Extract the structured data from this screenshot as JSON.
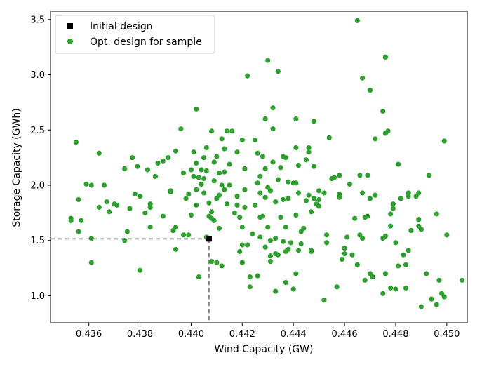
{
  "chart_data": {
    "type": "scatter",
    "xlabel": "Wind Capacity (GW)",
    "ylabel": "Storage Capacity (GWh)",
    "xlim": [
      0.4345,
      0.4508
    ],
    "ylim": [
      0.755,
      3.575
    ],
    "x_ticks": [
      "0.436",
      "0.438",
      "0.440",
      "0.442",
      "0.444",
      "0.446",
      "0.448",
      "0.450"
    ],
    "x_tick_values": [
      0.436,
      0.438,
      0.44,
      0.442,
      0.444,
      0.446,
      0.448,
      0.45
    ],
    "y_ticks": [
      "1.0",
      "1.5",
      "2.0",
      "2.5",
      "3.0",
      "3.5"
    ],
    "y_tick_values": [
      1.0,
      1.5,
      2.0,
      2.5,
      3.0,
      3.5
    ],
    "grid": false,
    "legend_position": "top-left",
    "colors": {
      "initial": "#000000",
      "samples": "#2ca02c",
      "guide": "#808080"
    },
    "series": [
      {
        "name": "Initial design",
        "marker": "square",
        "points": [
          [
            0.4407,
            1.515
          ]
        ]
      },
      {
        "name": "Opt. design for sample",
        "marker": "circle",
        "points": [
          [
            0.4353,
            1.7
          ],
          [
            0.4353,
            1.68
          ],
          [
            0.4355,
            2.39
          ],
          [
            0.4356,
            1.87
          ],
          [
            0.4356,
            1.58
          ],
          [
            0.4357,
            1.68
          ],
          [
            0.4359,
            2.01
          ],
          [
            0.4361,
            2.0
          ],
          [
            0.4361,
            1.52
          ],
          [
            0.4361,
            1.3
          ],
          [
            0.4364,
            2.29
          ],
          [
            0.4364,
            1.8
          ],
          [
            0.4366,
            2.0
          ],
          [
            0.4367,
            1.85
          ],
          [
            0.4368,
            1.76
          ],
          [
            0.437,
            1.83
          ],
          [
            0.4371,
            1.82
          ],
          [
            0.4374,
            2.15
          ],
          [
            0.4374,
            1.5
          ],
          [
            0.4375,
            1.58
          ],
          [
            0.4376,
            1.79
          ],
          [
            0.4377,
            2.25
          ],
          [
            0.4378,
            1.92
          ],
          [
            0.4379,
            2.17
          ],
          [
            0.438,
            1.9
          ],
          [
            0.438,
            1.23
          ],
          [
            0.4382,
            1.75
          ],
          [
            0.4383,
            2.14
          ],
          [
            0.4384,
            1.83
          ],
          [
            0.4384,
            1.8
          ],
          [
            0.4384,
            1.62
          ],
          [
            0.4386,
            2.08
          ],
          [
            0.4387,
            2.2
          ],
          [
            0.4389,
            1.72
          ],
          [
            0.4389,
            2.22
          ],
          [
            0.4391,
            2.25
          ],
          [
            0.4392,
            1.95
          ],
          [
            0.4392,
            1.94
          ],
          [
            0.4393,
            1.59
          ],
          [
            0.4394,
            2.31
          ],
          [
            0.4394,
            1.62
          ],
          [
            0.4394,
            1.42
          ],
          [
            0.4396,
            2.51
          ],
          [
            0.4397,
            2.11
          ],
          [
            0.4397,
            1.55
          ],
          [
            0.4398,
            1.88
          ],
          [
            0.4399,
            1.55
          ],
          [
            0.4399,
            1.92
          ],
          [
            0.44,
            1.73
          ],
          [
            0.44,
            2.14
          ],
          [
            0.4401,
            2.08
          ],
          [
            0.4401,
            2.3
          ],
          [
            0.4402,
            2.2
          ],
          [
            0.4402,
            2.69
          ],
          [
            0.4402,
            1.96
          ],
          [
            0.4402,
            1.82
          ],
          [
            0.4403,
            2.07
          ],
          [
            0.4403,
            1.17
          ],
          [
            0.4404,
            2.01
          ],
          [
            0.4404,
            2.14
          ],
          [
            0.4405,
            1.93
          ],
          [
            0.4405,
            2.25
          ],
          [
            0.4405,
            2.06
          ],
          [
            0.4406,
            1.53
          ],
          [
            0.4406,
            2.34
          ],
          [
            0.4406,
            2.13
          ],
          [
            0.4407,
            1.84
          ],
          [
            0.4407,
            1.72
          ],
          [
            0.4408,
            2.49
          ],
          [
            0.4408,
            1.76
          ],
          [
            0.4408,
            1.7
          ],
          [
            0.4408,
            1.31
          ],
          [
            0.4409,
            2.21
          ],
          [
            0.4409,
            1.68
          ],
          [
            0.4409,
            2.04
          ],
          [
            0.441,
            1.88
          ],
          [
            0.441,
            1.3
          ],
          [
            0.441,
            2.26
          ],
          [
            0.4411,
            2.11
          ],
          [
            0.4411,
            1.61
          ],
          [
            0.4411,
            1.91
          ],
          [
            0.4412,
            2.0
          ],
          [
            0.4412,
            2.42
          ],
          [
            0.4412,
            1.27
          ],
          [
            0.4413,
            2.33
          ],
          [
            0.4413,
            2.12
          ],
          [
            0.4413,
            1.96
          ],
          [
            0.4414,
            1.83
          ],
          [
            0.4414,
            2.49
          ],
          [
            0.4415,
            2.19
          ],
          [
            0.4415,
            2.0
          ],
          [
            0.4416,
            2.49
          ],
          [
            0.4417,
            1.75
          ],
          [
            0.4418,
            1.82
          ],
          [
            0.4418,
            1.9
          ],
          [
            0.4418,
            2.3
          ],
          [
            0.4419,
            1.71
          ],
          [
            0.4419,
            1.4
          ],
          [
            0.442,
            2.41
          ],
          [
            0.442,
            1.62
          ],
          [
            0.442,
            1.46
          ],
          [
            0.442,
            1.3
          ],
          [
            0.4421,
            1.8
          ],
          [
            0.4421,
            2.15
          ],
          [
            0.4421,
            1.96
          ],
          [
            0.4422,
            1.46
          ],
          [
            0.4422,
            2.99
          ],
          [
            0.4423,
            1.17
          ],
          [
            0.4423,
            1.08
          ],
          [
            0.4424,
            1.56
          ],
          [
            0.4425,
            1.82
          ],
          [
            0.4425,
            2.41
          ],
          [
            0.4426,
            2.29
          ],
          [
            0.4426,
            2.02
          ],
          [
            0.4426,
            1.18
          ],
          [
            0.4427,
            1.71
          ],
          [
            0.4427,
            2.08
          ],
          [
            0.4427,
            1.93
          ],
          [
            0.4427,
            1.53
          ],
          [
            0.4428,
            2.26
          ],
          [
            0.4428,
            1.72
          ],
          [
            0.4429,
            2.6
          ],
          [
            0.4429,
            1.44
          ],
          [
            0.4429,
            2.15
          ],
          [
            0.4429,
            1.89
          ],
          [
            0.443,
            3.13
          ],
          [
            0.443,
            1.98
          ],
          [
            0.443,
            1.62
          ],
          [
            0.4431,
            1.31
          ],
          [
            0.4431,
            1.36
          ],
          [
            0.4431,
            1.95
          ],
          [
            0.4431,
            1.5
          ],
          [
            0.4432,
            2.51
          ],
          [
            0.4432,
            2.7
          ],
          [
            0.4432,
            2.21
          ],
          [
            0.4433,
            1.85
          ],
          [
            0.4433,
            1.52
          ],
          [
            0.4433,
            1.38
          ],
          [
            0.4433,
            1.04
          ],
          [
            0.4434,
            3.03
          ],
          [
            0.4434,
            1.37
          ],
          [
            0.4434,
            2.05
          ],
          [
            0.4435,
            1.71
          ],
          [
            0.4435,
            2.16
          ],
          [
            0.4436,
            1.87
          ],
          [
            0.4436,
            2.26
          ],
          [
            0.4436,
            1.49
          ],
          [
            0.4437,
            1.12
          ],
          [
            0.4437,
            2.25
          ],
          [
            0.4437,
            1.4
          ],
          [
            0.4437,
            1.62
          ],
          [
            0.4438,
            1.88
          ],
          [
            0.4438,
            2.03
          ],
          [
            0.4438,
            1.42
          ],
          [
            0.4439,
            1.48
          ],
          [
            0.444,
            1.06
          ],
          [
            0.444,
            2.02
          ],
          [
            0.4441,
            2.34
          ],
          [
            0.4441,
            1.73
          ],
          [
            0.4441,
            2.6
          ],
          [
            0.4441,
            1.2
          ],
          [
            0.4441,
            2.02
          ],
          [
            0.4442,
            1.93
          ],
          [
            0.4442,
            2.18
          ],
          [
            0.4442,
            1.41
          ],
          [
            0.4443,
            1.58
          ],
          [
            0.4443,
            1.47
          ],
          [
            0.4444,
            1.61
          ],
          [
            0.4445,
            2.23
          ],
          [
            0.4445,
            1.86
          ],
          [
            0.4446,
            2.34
          ],
          [
            0.4446,
            2.3
          ],
          [
            0.4446,
            1.91
          ],
          [
            0.4447,
            1.76
          ],
          [
            0.4447,
            1.41
          ],
          [
            0.4447,
            1.4
          ],
          [
            0.4448,
            2.58
          ],
          [
            0.4448,
            1.88
          ],
          [
            0.4448,
            2.17
          ],
          [
            0.4449,
            1.83
          ],
          [
            0.445,
            1.95
          ],
          [
            0.445,
            1.87
          ],
          [
            0.445,
            1.81
          ],
          [
            0.4452,
            0.96
          ],
          [
            0.4452,
            1.93
          ],
          [
            0.4453,
            1.48
          ],
          [
            0.4453,
            1.55
          ],
          [
            0.4454,
            2.43
          ],
          [
            0.4455,
            2.06
          ],
          [
            0.4456,
            2.07
          ],
          [
            0.4457,
            1.08
          ],
          [
            0.4458,
            1.89
          ],
          [
            0.4458,
            2.09
          ],
          [
            0.4458,
            1.92
          ],
          [
            0.4459,
            1.33
          ],
          [
            0.446,
            1.38
          ],
          [
            0.446,
            1.43
          ],
          [
            0.4461,
            1.53
          ],
          [
            0.4462,
            2.01
          ],
          [
            0.4463,
            1.37
          ],
          [
            0.4464,
            1.7
          ],
          [
            0.4465,
            1.28
          ],
          [
            0.4465,
            3.49
          ],
          [
            0.4466,
            2.09
          ],
          [
            0.4466,
            1.55
          ],
          [
            0.4467,
            2.97
          ],
          [
            0.4467,
            1.52
          ],
          [
            0.4467,
            1.93
          ],
          [
            0.4468,
            1.14
          ],
          [
            0.4468,
            1.71
          ],
          [
            0.4469,
            1.72
          ],
          [
            0.4469,
            2.09
          ],
          [
            0.447,
            2.86
          ],
          [
            0.447,
            1.88
          ],
          [
            0.447,
            1.2
          ],
          [
            0.4471,
            1.17
          ],
          [
            0.4472,
            2.42
          ],
          [
            0.4472,
            1.91
          ],
          [
            0.4475,
            2.67
          ],
          [
            0.4475,
            1.02
          ],
          [
            0.4475,
            1.52
          ],
          [
            0.4476,
            3.16
          ],
          [
            0.4476,
            2.47
          ],
          [
            0.4476,
            1.54
          ],
          [
            0.4476,
            1.2
          ],
          [
            0.4477,
            2.49
          ],
          [
            0.4478,
            1.74
          ],
          [
            0.4478,
            1.07
          ],
          [
            0.4478,
            1.63
          ],
          [
            0.4479,
            1.83
          ],
          [
            0.4479,
            1.79
          ],
          [
            0.448,
            1.06
          ],
          [
            0.448,
            1.48
          ],
          [
            0.4481,
            2.19
          ],
          [
            0.4481,
            1.27
          ],
          [
            0.4482,
            1.88
          ],
          [
            0.4483,
            1.37
          ],
          [
            0.4484,
            1.07
          ],
          [
            0.4484,
            1.28
          ],
          [
            0.4485,
            1.93
          ],
          [
            0.4485,
            1.9
          ],
          [
            0.4485,
            1.41
          ],
          [
            0.4486,
            1.59
          ],
          [
            0.4488,
            1.9
          ],
          [
            0.4489,
            1.69
          ],
          [
            0.4489,
            1.93
          ],
          [
            0.4489,
            1.63
          ],
          [
            0.449,
            0.9
          ],
          [
            0.449,
            1.6
          ],
          [
            0.4492,
            1.2
          ],
          [
            0.4493,
            2.09
          ],
          [
            0.4494,
            0.97
          ],
          [
            0.4496,
            0.92
          ],
          [
            0.4496,
            1.74
          ],
          [
            0.4497,
            1.14
          ],
          [
            0.4498,
            1.02
          ],
          [
            0.4499,
            2.4
          ],
          [
            0.4499,
            0.99
          ],
          [
            0.45,
            1.55
          ],
          [
            0.4506,
            1.14
          ]
        ]
      }
    ]
  }
}
